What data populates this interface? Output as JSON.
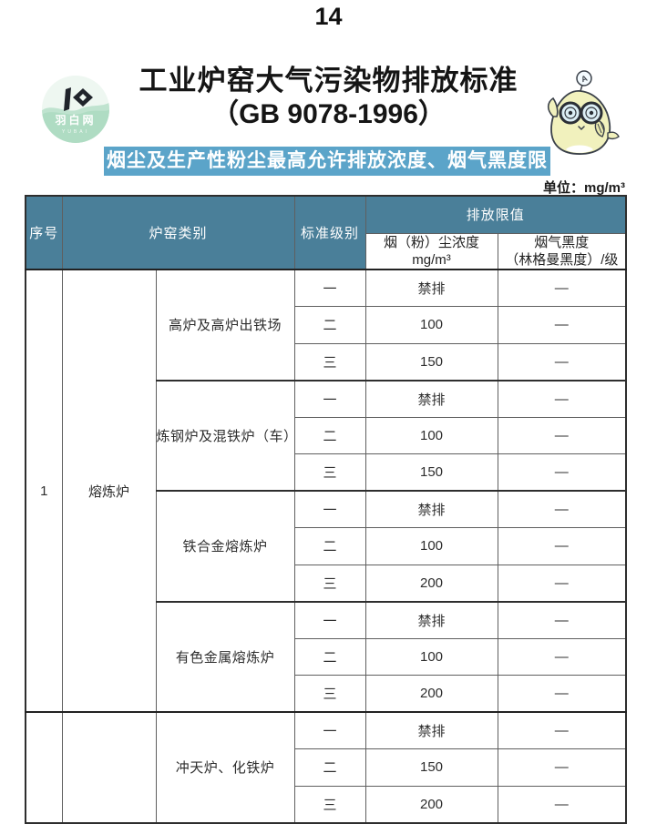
{
  "page": {
    "number": "14",
    "unit_label": "单位：mg/m³"
  },
  "header": {
    "title_line1": "工业炉窑大气污染物排放标准",
    "title_line2": "（GB 9078-1996）",
    "banner": "烟尘及生产性粉尘最高允许排放浓度、烟气黑度限值",
    "logo": {
      "name_cn": "羽白网",
      "name_en": "YUBAI"
    },
    "mascot": {
      "antenna_letter": "A"
    }
  },
  "table": {
    "headers": {
      "col_index": "序号",
      "col_category": "炉窑类别",
      "col_level": "标准级别",
      "col_limits": "排放限值",
      "col_dust": "烟（粉）尘浓度\nmg/m³",
      "col_blackness": "烟气黑度\n（林格曼黑度）/级"
    },
    "sections": [
      {
        "index": "1",
        "category": "熔炼炉",
        "groups": [
          {
            "name": "高炉及高炉出铁场",
            "rows": [
              [
                "一",
                "禁排",
                "—"
              ],
              [
                "二",
                "100",
                "—"
              ],
              [
                "三",
                "150",
                "—"
              ]
            ]
          },
          {
            "name": "炼钢炉及混铁炉（车）",
            "rows": [
              [
                "一",
                "禁排",
                "—"
              ],
              [
                "二",
                "100",
                "—"
              ],
              [
                "三",
                "150",
                "—"
              ]
            ]
          },
          {
            "name": "铁合金熔炼炉",
            "rows": [
              [
                "一",
                "禁排",
                "—"
              ],
              [
                "二",
                "100",
                "—"
              ],
              [
                "三",
                "200",
                "—"
              ]
            ]
          },
          {
            "name": "有色金属熔炼炉",
            "rows": [
              [
                "一",
                "禁排",
                "—"
              ],
              [
                "二",
                "100",
                "—"
              ],
              [
                "三",
                "200",
                "—"
              ]
            ]
          }
        ]
      },
      {
        "index": "",
        "category": "",
        "groups": [
          {
            "name": "冲天炉、化铁炉",
            "rows": [
              [
                "一",
                "禁排",
                "—"
              ],
              [
                "二",
                "150",
                "—"
              ],
              [
                "三",
                "200",
                "—"
              ]
            ]
          }
        ]
      }
    ]
  },
  "colors": {
    "header_teal": "#4a7f99",
    "banner_blue": "#5ba4c9",
    "accent_peach": "#f7d9bd",
    "mascot_yellow": "#f1f1bd",
    "logo_green": "#bfe3cf",
    "page_bg": "#ffffff"
  }
}
